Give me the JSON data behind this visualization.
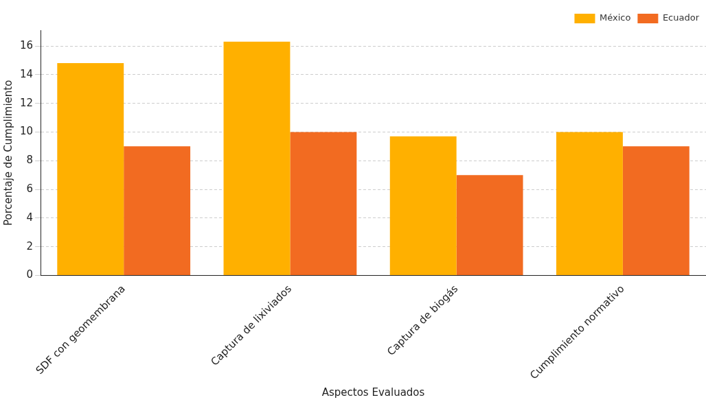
{
  "chart_data": {
    "type": "bar",
    "xlabel": "Aspectos Evaluados",
    "ylabel": "Porcentaje de Cumplimiento",
    "categories": [
      "SDF con geomembrana",
      "Captura de lixiviados",
      "Captura de biogás",
      "Cumplimiento normativo"
    ],
    "series": [
      {
        "name": "México",
        "color": "#ffb000",
        "values": [
          14.8,
          16.3,
          9.7,
          10
        ]
      },
      {
        "name": "Ecuador",
        "color": "#f26b21",
        "values": [
          9,
          10,
          7,
          9
        ]
      }
    ],
    "ylim": [
      0,
      17.1
    ],
    "yticks": [
      0,
      2,
      4,
      6,
      8,
      10,
      12,
      14,
      16
    ],
    "grid": "y",
    "legend": "top right"
  }
}
